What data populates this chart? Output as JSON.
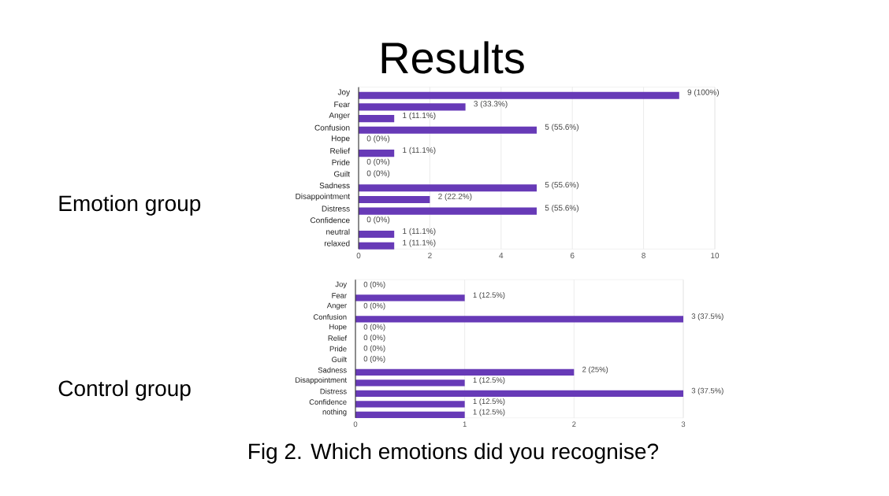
{
  "chart_data": [
    {
      "type": "bar",
      "orientation": "horizontal",
      "title": "Results",
      "ylabel": "Emotion group",
      "categories": [
        "Joy",
        "Fear",
        "Anger",
        "Confusion",
        "Hope",
        "Relief",
        "Pride",
        "Guilt",
        "Sadness",
        "Disappointment",
        "Distress",
        "Confidence",
        "neutral",
        "relaxed"
      ],
      "values": [
        9,
        3,
        1,
        5,
        0,
        1,
        0,
        0,
        5,
        2,
        5,
        0,
        1,
        1
      ],
      "value_labels": [
        "9 (100%)",
        "3 (33.3%)",
        "1 (11.1%)",
        "5 (55.6%)",
        "0 (0%)",
        "1 (11.1%)",
        "0 (0%)",
        "0 (0%)",
        "5 (55.6%)",
        "2 (22.2%)",
        "5 (55.6%)",
        "0 (0%)",
        "1 (11.1%)",
        "1 (11.1%)"
      ],
      "color": "#673ab7",
      "xlim": [
        0,
        10
      ],
      "xticks": [
        0,
        2,
        4,
        6,
        8,
        10
      ],
      "grid": "x"
    },
    {
      "type": "bar",
      "orientation": "horizontal",
      "ylabel": "Control group",
      "categories": [
        "Joy",
        "Fear",
        "Anger",
        "Confusion",
        "Hope",
        "Relief",
        "Pride",
        "Guilt",
        "Sadness",
        "Disappointment",
        "Distress",
        "Confidence",
        "nothing"
      ],
      "values": [
        0,
        1,
        0,
        3,
        0,
        0,
        0,
        0,
        2,
        1,
        3,
        1,
        1
      ],
      "value_labels": [
        "0 (0%)",
        "1 (12.5%)",
        "0 (0%)",
        "3 (37.5%)",
        "0 (0%)",
        "0 (0%)",
        "0 (0%)",
        "0 (0%)",
        "2 (25%)",
        "1 (12.5%)",
        "3 (37.5%)",
        "1 (12.5%)",
        "1 (12.5%)"
      ],
      "color": "#673ab7",
      "xlim": [
        0,
        3
      ],
      "xticks": [
        0,
        1,
        2,
        3
      ],
      "grid": "x",
      "annotations": [
        "Fig 2. Which emotions did you recognise?"
      ]
    }
  ]
}
